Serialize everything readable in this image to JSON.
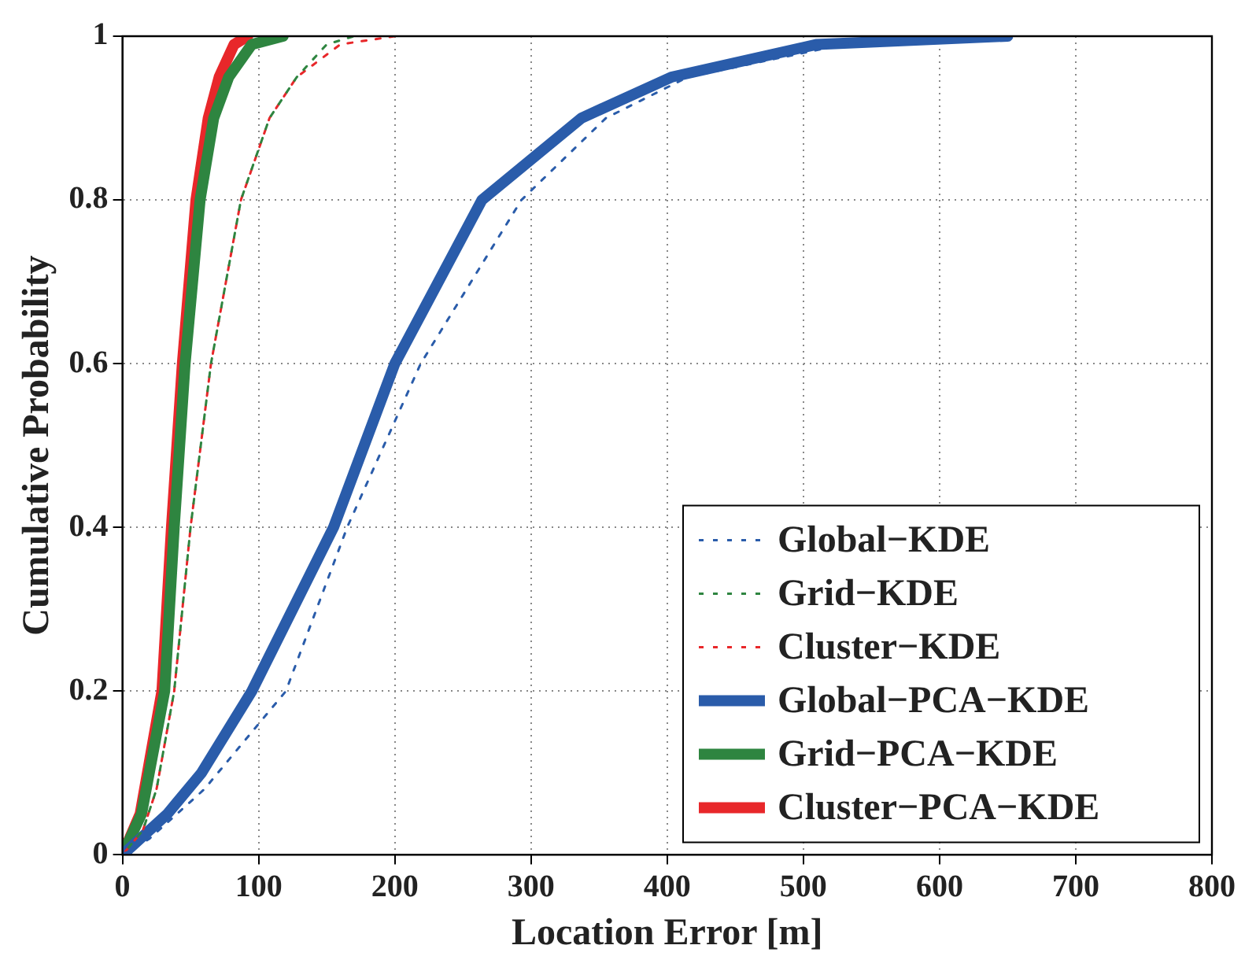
{
  "chart_data": {
    "type": "line",
    "xlabel": "Location Error [m]",
    "ylabel": "Cumulative Probability",
    "xlim": [
      0,
      800
    ],
    "xticks": [
      0,
      100,
      200,
      300,
      400,
      500,
      600,
      700,
      800
    ],
    "ylim": [
      0,
      1
    ],
    "yticks": [
      0,
      0.2,
      0.4,
      0.6,
      0.8,
      1
    ],
    "grid": true,
    "legend": "bottom right",
    "marker": "none",
    "series": [
      {
        "name": "Global−KDE",
        "color": "#2a5caa",
        "line_style": "dashed",
        "x": [
          0,
          20,
          60,
          120,
          165,
          219,
          293,
          355,
          415,
          530,
          620
        ],
        "values": [
          0,
          0.02,
          0.08,
          0.2,
          0.4,
          0.6,
          0.8,
          0.9,
          0.95,
          0.99,
          1
        ]
      },
      {
        "name": "Grid−KDE",
        "color": "#2e8540",
        "line_style": "dashed",
        "x": [
          0,
          15,
          25,
          38,
          50,
          65,
          87,
          108,
          128,
          150,
          170
        ],
        "values": [
          0,
          0.03,
          0.08,
          0.2,
          0.4,
          0.6,
          0.8,
          0.9,
          0.95,
          0.99,
          1
        ]
      },
      {
        "name": "Cluster−KDE",
        "color": "#e8272a",
        "line_style": "dashed",
        "x": [
          0,
          15,
          25,
          38,
          50,
          65,
          87,
          108,
          128,
          160,
          200
        ],
        "values": [
          0,
          0.03,
          0.08,
          0.2,
          0.4,
          0.6,
          0.8,
          0.9,
          0.95,
          0.99,
          1
        ]
      },
      {
        "name": "Global−PCA−KDE",
        "color": "#2a5caa",
        "line_style": "solid",
        "x": [
          0,
          33,
          58,
          95,
          155,
          200,
          264,
          337,
          403,
          510,
          650
        ],
        "values": [
          0,
          0.05,
          0.1,
          0.2,
          0.4,
          0.6,
          0.8,
          0.9,
          0.95,
          0.99,
          1
        ]
      },
      {
        "name": "Grid−PCA−KDE",
        "color": "#2e8540",
        "line_style": "solid",
        "x": [
          0,
          14,
          31,
          38,
          46,
          57,
          67,
          78,
          95,
          118
        ],
        "values": [
          0,
          0.05,
          0.2,
          0.4,
          0.6,
          0.8,
          0.9,
          0.95,
          0.99,
          1
        ]
      },
      {
        "name": "Cluster−PCA−KDE",
        "color": "#e8272a",
        "line_style": "solid",
        "x": [
          0,
          13,
          29,
          36,
          44,
          54,
          63,
          71,
          82,
          92
        ],
        "values": [
          0,
          0.05,
          0.2,
          0.4,
          0.6,
          0.8,
          0.9,
          0.95,
          0.99,
          1
        ]
      }
    ]
  }
}
